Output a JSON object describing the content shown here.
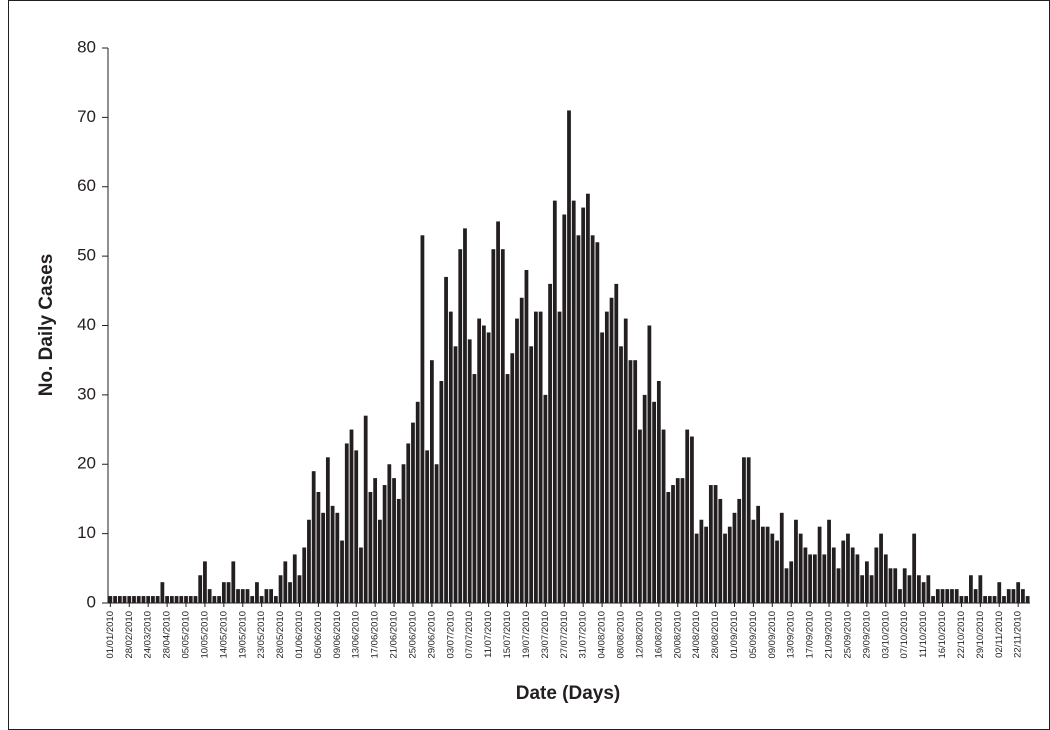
{
  "chart_data": {
    "type": "bar",
    "x_label": "Date (Days)",
    "y_label": "No. Daily Cases",
    "color": "#231f20",
    "ylim": [
      0,
      80
    ],
    "yticks": [
      0,
      10,
      20,
      30,
      40,
      50,
      60,
      70,
      80
    ],
    "categories": [
      "01/01/2010",
      null,
      null,
      null,
      "28/02/2010",
      null,
      null,
      null,
      "24/03/2010",
      null,
      null,
      null,
      "28/04/2010",
      null,
      null,
      null,
      "05/05/2010",
      null,
      null,
      null,
      "10/05/2010",
      null,
      null,
      null,
      "14/05/2010",
      null,
      null,
      null,
      "19/05/2010",
      null,
      null,
      null,
      "23/05/2010",
      null,
      null,
      null,
      "28/05/2010",
      null,
      null,
      null,
      "01/06/2010",
      null,
      null,
      null,
      "05/06/2010",
      null,
      null,
      null,
      "09/06/2010",
      null,
      null,
      null,
      "13/06/2010",
      null,
      null,
      null,
      "17/06/2010",
      null,
      null,
      null,
      "21/06/2010",
      null,
      null,
      null,
      "25/06/2010",
      null,
      null,
      null,
      "29/06/2010",
      null,
      null,
      null,
      "03/07/2010",
      null,
      null,
      null,
      "07/07/2010",
      null,
      null,
      null,
      "11/07/2010",
      null,
      null,
      null,
      "15/07/2010",
      null,
      null,
      null,
      "19/07/2010",
      null,
      null,
      null,
      "23/07/2010",
      null,
      null,
      null,
      "27/07/2010",
      null,
      null,
      null,
      "31/07/2010",
      null,
      null,
      null,
      "04/08/2010",
      null,
      null,
      null,
      "08/08/2010",
      null,
      null,
      null,
      "12/08/2010",
      null,
      null,
      null,
      "16/08/2010",
      null,
      null,
      null,
      "20/08/2010",
      null,
      null,
      null,
      "24/08/2010",
      null,
      null,
      null,
      "28/08/2010",
      null,
      null,
      null,
      "01/09/2010",
      null,
      null,
      null,
      "05/09/2010",
      null,
      null,
      null,
      "09/09/2010",
      null,
      null,
      null,
      "13/09/2010",
      null,
      null,
      null,
      "17/09/2010",
      null,
      null,
      null,
      "21/09/2010",
      null,
      null,
      null,
      "25/09/2010",
      null,
      null,
      null,
      "29/09/2010",
      null,
      null,
      null,
      "03/10/2010",
      null,
      null,
      null,
      "07/10/2010",
      null,
      null,
      null,
      "11/10/2010",
      null,
      null,
      null,
      "16/10/2010",
      null,
      null,
      null,
      "22/10/2010",
      null,
      null,
      null,
      "29/10/2010",
      null,
      null,
      null,
      "02/11/2010",
      null,
      null,
      null,
      "22/11/2010",
      null,
      null
    ],
    "values": [
      1,
      1,
      1,
      1,
      1,
      1,
      1,
      1,
      1,
      1,
      1,
      3,
      1,
      1,
      1,
      1,
      1,
      1,
      1,
      4,
      6,
      2,
      1,
      1,
      3,
      3,
      6,
      2,
      2,
      2,
      1,
      3,
      1,
      2,
      2,
      1,
      4,
      6,
      3,
      7,
      4,
      8,
      12,
      19,
      16,
      13,
      21,
      14,
      13,
      9,
      23,
      25,
      22,
      8,
      27,
      16,
      18,
      12,
      17,
      20,
      18,
      15,
      20,
      23,
      26,
      29,
      53,
      22,
      35,
      20,
      32,
      47,
      42,
      37,
      51,
      54,
      38,
      33,
      41,
      40,
      39,
      51,
      55,
      51,
      33,
      36,
      41,
      44,
      48,
      37,
      42,
      42,
      30,
      46,
      58,
      42,
      56,
      71,
      58,
      53,
      57,
      59,
      53,
      52,
      39,
      42,
      44,
      46,
      37,
      41,
      35,
      35,
      25,
      30,
      40,
      29,
      32,
      25,
      16,
      17,
      18,
      18,
      25,
      24,
      10,
      12,
      11,
      17,
      17,
      15,
      10,
      11,
      13,
      15,
      21,
      21,
      12,
      14,
      11,
      11,
      10,
      9,
      13,
      5,
      6,
      12,
      10,
      8,
      7,
      7,
      11,
      7,
      12,
      8,
      5,
      9,
      10,
      8,
      7,
      4,
      6,
      4,
      8,
      10,
      7,
      5,
      5,
      2,
      5,
      4,
      10,
      4,
      3,
      4,
      1,
      2,
      2,
      2,
      2,
      2,
      1,
      1,
      4,
      2,
      4,
      1,
      1,
      1,
      3,
      1,
      2,
      2,
      3,
      2,
      1
    ]
  }
}
